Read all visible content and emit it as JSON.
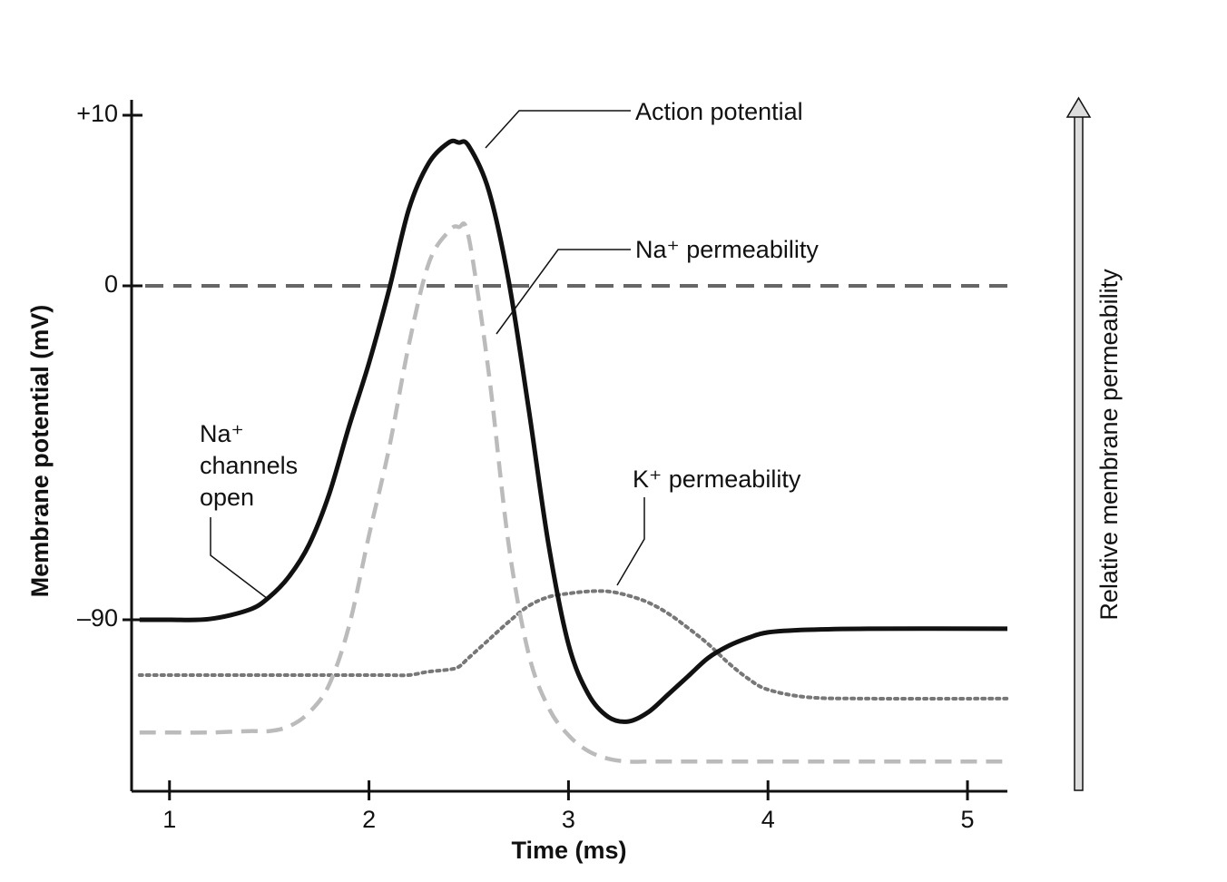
{
  "chart_data": {
    "type": "line",
    "x_label": "Time (ms)",
    "y_label": "Membrane potential (mV)",
    "y2_label": "Relative membrane permeability",
    "x": [
      0.85,
      1.0,
      1.2,
      1.4,
      1.5,
      1.6,
      1.7,
      1.8,
      1.9,
      2.0,
      2.1,
      2.2,
      2.3,
      2.4,
      2.45,
      2.5,
      2.6,
      2.7,
      2.8,
      2.9,
      3.0,
      3.1,
      3.2,
      3.3,
      3.4,
      3.5,
      3.6,
      3.7,
      3.8,
      3.9,
      4.0,
      4.2,
      4.5,
      5.2
    ],
    "series": [
      {
        "name": "Action potential",
        "color": "#111111",
        "style": "solid",
        "values": [
          -90,
          -90,
          -89.8,
          -87.3,
          -83.9,
          -78.3,
          -69.7,
          -56.2,
          -37.9,
          -20.8,
          -1.2,
          4.5,
          7.2,
          8.4,
          8.4,
          8.2,
          5.6,
          0.3,
          -33.0,
          -69.7,
          -96.6,
          -110.1,
          -116.2,
          -117.4,
          -114.9,
          -110.1,
          -105.2,
          -100.3,
          -97.1,
          -94.9,
          -93.4,
          -92.7,
          -92.4,
          -92.4
        ]
      },
      {
        "name": "Na⁺ permeability",
        "color": "#bbbbbb",
        "style": "dashed",
        "axis": "y2",
        "values": [
          0.085,
          0.085,
          0.085,
          0.087,
          0.087,
          0.094,
          0.114,
          0.154,
          0.239,
          0.37,
          0.495,
          0.646,
          0.764,
          0.81,
          0.816,
          0.801,
          0.606,
          0.357,
          0.199,
          0.121,
          0.081,
          0.058,
          0.047,
          0.043,
          0.043,
          0.043,
          0.043,
          0.043,
          0.043,
          0.043,
          0.043,
          0.043,
          0.043,
          0.043
        ]
      },
      {
        "name": "K⁺ permeability",
        "color": "#777777",
        "style": "dotted",
        "axis": "y2",
        "values": [
          0.168,
          0.168,
          0.168,
          0.168,
          0.168,
          0.168,
          0.168,
          0.168,
          0.168,
          0.168,
          0.168,
          0.168,
          0.173,
          0.176,
          0.18,
          0.193,
          0.219,
          0.245,
          0.268,
          0.281,
          0.286,
          0.289,
          0.289,
          0.283,
          0.273,
          0.257,
          0.236,
          0.213,
          0.186,
          0.163,
          0.147,
          0.136,
          0.134,
          0.134
        ]
      }
    ],
    "annotation": [
      "Na⁺",
      "channels",
      "open"
    ],
    "xlim": [
      0.81,
      5.2
    ],
    "xticks": [
      1,
      2,
      3,
      4,
      5
    ],
    "ylim": [
      -136.2,
      10.9
    ],
    "yticks": [
      {
        "value": -90,
        "label": "–90"
      },
      0,
      {
        "value": 10,
        "label": "+10"
      }
    ],
    "y2lim": [
      0,
      1
    ],
    "reference_line": {
      "y": 0,
      "color": "#666666"
    }
  }
}
